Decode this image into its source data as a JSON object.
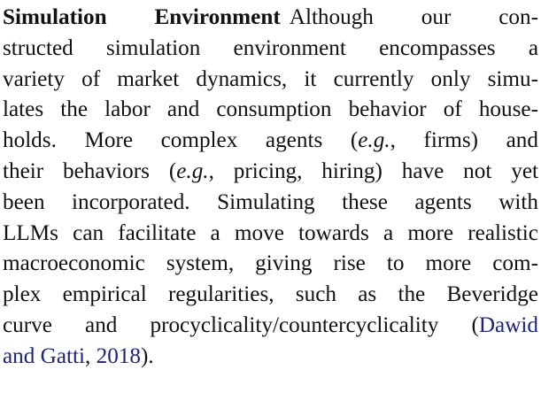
{
  "paragraph": {
    "heading": "Simulation Environment",
    "lines": [
      "Although our con-",
      "structed simulation environment encompasses a",
      "variety of market dynamics, it currently only simu-",
      "lates the labor and consumption behavior of house-",
      "holds. More complex agents (",
      "e.g.",
      ", firms) and",
      "their behaviors (",
      "e.g.",
      ", pricing, hiring) have not yet",
      "been incorporated. Simulating these agents with",
      "LLMs can facilitate a move towards a more realistic",
      "macroeconomic system, giving rise to more com-",
      "plex empirical regularities, such as the Beveridge",
      "curve and procyclicality/countercyclicality (",
      "Dawid",
      "and Gatti",
      ", ",
      "2018",
      ")."
    ]
  },
  "colors": {
    "text": "#111111",
    "citation_link": "#1a237e"
  }
}
